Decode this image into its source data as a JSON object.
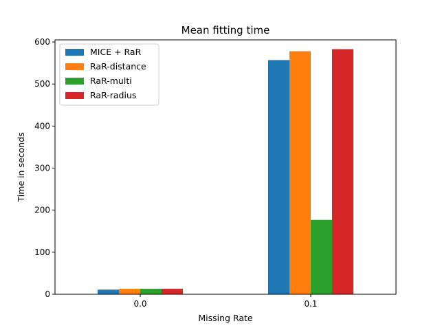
{
  "chart_data": {
    "type": "bar",
    "title": "Mean fitting time",
    "xlabel": "Missing Rate",
    "ylabel": "Time in seconds",
    "categories": [
      "0.0",
      "0.1"
    ],
    "ylim": [
      0,
      605
    ],
    "yticks": [
      0,
      100,
      200,
      300,
      400,
      500,
      600
    ],
    "grid": false,
    "legend_position": "top-left",
    "series": [
      {
        "name": "MICE + RaR",
        "color": "#1f77b4",
        "values": [
          11,
          557
        ]
      },
      {
        "name": "RaR-distance",
        "color": "#ff7f0e",
        "values": [
          13,
          578
        ]
      },
      {
        "name": "RaR-multi",
        "color": "#2ca02c",
        "values": [
          13,
          177
        ]
      },
      {
        "name": "RaR-radius",
        "color": "#d62728",
        "values": [
          13,
          583
        ]
      }
    ]
  }
}
